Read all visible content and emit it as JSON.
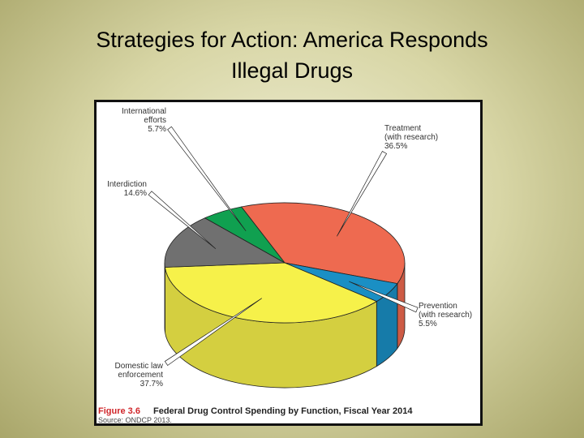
{
  "slide": {
    "title_line1": "Strategies for Action: America Responds",
    "title_line2": "Illegal Drugs"
  },
  "colors": {
    "treatment": "#ee6a50",
    "prevention": "#1a8fc4",
    "domestic": "#f6f14a",
    "interdiction": "#707070",
    "international": "#10a050"
  },
  "chart_data": {
    "type": "pie",
    "caption_figure": "Figure 3.6",
    "caption_title": "Federal Drug Control Spending by Function, Fiscal Year 2014",
    "caption_source": "Source: ONDCP 2013.",
    "slices": [
      {
        "key": "treatment",
        "label_lines": [
          "Treatment",
          "(with research)"
        ],
        "value_text": "36.5%",
        "value": 36.5
      },
      {
        "key": "prevention",
        "label_lines": [
          "Prevention",
          "(with research)"
        ],
        "value_text": "5.5%",
        "value": 5.5
      },
      {
        "key": "domestic",
        "label_lines": [
          "Domestic law",
          "enforcement"
        ],
        "value_text": "37.7%",
        "value": 37.7
      },
      {
        "key": "interdiction",
        "label_lines": [
          "Interdiction"
        ],
        "value_text": "14.6%",
        "value": 14.6
      },
      {
        "key": "international",
        "label_lines": [
          "International",
          "efforts"
        ],
        "value_text": "5.7%",
        "value": 5.7
      }
    ]
  }
}
